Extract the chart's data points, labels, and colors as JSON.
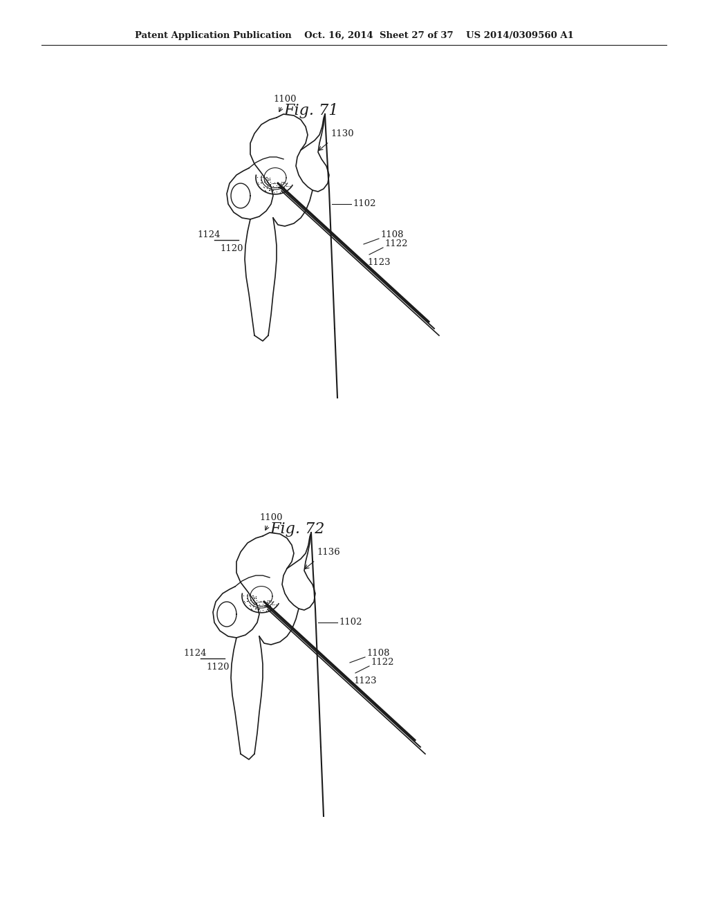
{
  "bg_color": "#ffffff",
  "fig_width": 10.24,
  "fig_height": 13.2,
  "header_text": "Patent Application Publication    Oct. 16, 2014  Sheet 27 of 37    US 2014/0309560 A1",
  "fig71_title": "Fig. 71",
  "fig72_title": "Fig. 72",
  "label_color": "#1a1a1a",
  "line_color": "#1a1a1a",
  "label_fontsize": 9.5,
  "header_fontsize": 9.5,
  "title_fontsize": 16
}
